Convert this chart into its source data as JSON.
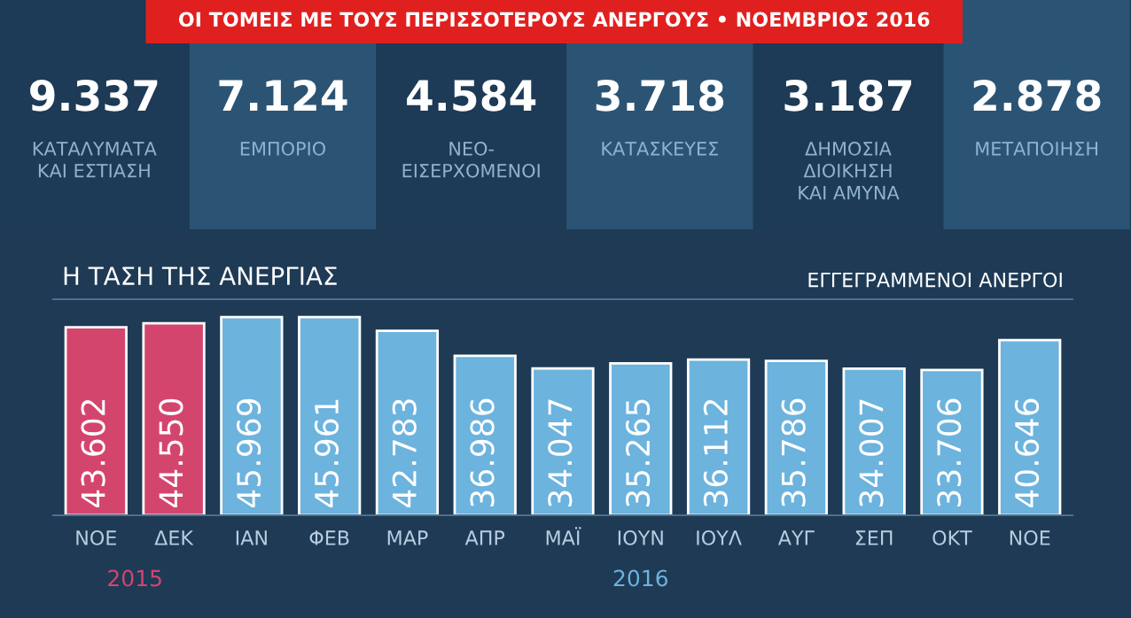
{
  "chart_data": [
    {
      "type": "other",
      "title": "ΟΙ ΤΟΜΕΙΣ ΜΕ ΤΟΥΣ ΠΕΡΙΣΣΟΤΕΡΟΥΣ ΑΝΕΡΓΟΥΣ • ΝΟΕΜΒΡΙΟΣ 2016",
      "categories": [
        "ΚΑΤΑΛΥΜΑΤΑ\nΚΑΙ ΕΣΤΙΑΣΗ",
        "ΕΜΠΟΡΙΟ",
        "ΝΕΟ-\nΕΙΣΕΡΧΟΜΕΝΟΙ",
        "ΚΑΤΑΣΚΕΥΕΣ",
        "ΔΗΜΟΣΙΑ\nΔΙΟΙΚΗΣΗ\nΚΑΙ ΑΜΥΝΑ",
        "ΜΕΤΑΠΟΙΗΣΗ"
      ],
      "value_labels": [
        "9.337",
        "7.124",
        "4.584",
        "3.718",
        "3.187",
        "2.878"
      ]
    },
    {
      "type": "bar",
      "title": "Η ΤΑΣΗ ΤΗΣ ΑΝΕΡΓΙΑΣ",
      "subtitle": "ΕΓΓΕΓΡΑΜΜΕΝΟΙ ΑΝΕΡΓΟΙ",
      "categories": [
        "ΝΟΕ",
        "ΔΕΚ",
        "ΙΑΝ",
        "ΦΕΒ",
        "ΜΑΡ",
        "ΑΠΡ",
        "ΜΑΪ",
        "ΙΟΥΝ",
        "ΙΟΥΛ",
        "ΑΥΓ",
        "ΣΕΠ",
        "ΟΚΤ",
        "ΝΟΕ"
      ],
      "series": [
        {
          "name": "2015",
          "color": "#d4456e",
          "values": [
            43602,
            44550,
            null,
            null,
            null,
            null,
            null,
            null,
            null,
            null,
            null,
            null,
            null
          ],
          "value_labels": [
            "43.602",
            "44.550",
            null,
            null,
            null,
            null,
            null,
            null,
            null,
            null,
            null,
            null,
            null
          ]
        },
        {
          "name": "2016",
          "color": "#6cb3de",
          "values": [
            null,
            null,
            45969,
            45961,
            42783,
            36986,
            34047,
            35265,
            36112,
            35786,
            34007,
            33706,
            40646
          ],
          "value_labels": [
            null,
            null,
            "45.969",
            "45.961",
            "42.783",
            "36.986",
            "34.047",
            "35.265",
            "36.112",
            "35.786",
            "34.007",
            "33.706",
            "40.646"
          ]
        }
      ]
    }
  ]
}
